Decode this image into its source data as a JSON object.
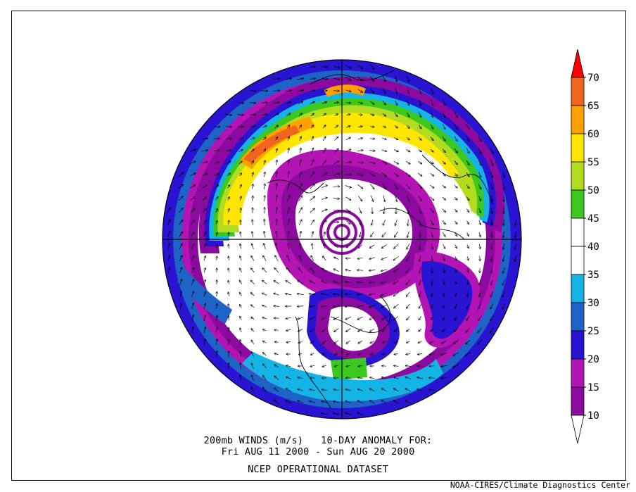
{
  "title_lines": {
    "line1": "200mb WINDS (m/s)   10-DAY ANOMALY FOR:",
    "line2": "Fri AUG 11 2000 - Sun AUG 20 2000",
    "line3": "NCEP OPERATIONAL DATASET"
  },
  "credit": "NOAA-CIRES/Climate Diagnostics Center",
  "colorbar": {
    "labels": [
      "10",
      "15",
      "20",
      "25",
      "30",
      "35",
      "40",
      "45",
      "50",
      "55",
      "60",
      "65",
      "70"
    ],
    "bins": [
      {
        "range": "<10",
        "color": "#ffffff"
      },
      {
        "range": "10-15",
        "color": "#8c0aa0"
      },
      {
        "range": "15-20",
        "color": "#b414b4"
      },
      {
        "range": "20-25",
        "color": "#2814d2"
      },
      {
        "range": "25-30",
        "color": "#1e64c8"
      },
      {
        "range": "30-35",
        "color": "#14b4e6"
      },
      {
        "range": "35-40",
        "color": "#ffffff"
      },
      {
        "range": "40-45",
        "color": "#ffffff"
      },
      {
        "range": "45-50",
        "color": "#3cc81e"
      },
      {
        "range": "50-55",
        "color": "#b4dc1e"
      },
      {
        "range": "55-60",
        "color": "#ffe600"
      },
      {
        "range": "60-65",
        "color": "#ffa000"
      },
      {
        "range": "65-70",
        "color": "#f0641e"
      },
      {
        "range": ">70",
        "color": "#ff0000"
      }
    ]
  },
  "map": {
    "projection": "north-polar-stereographic",
    "variable": "200mb wind speed with wind vectors",
    "grid_lines": "cross through pole"
  }
}
